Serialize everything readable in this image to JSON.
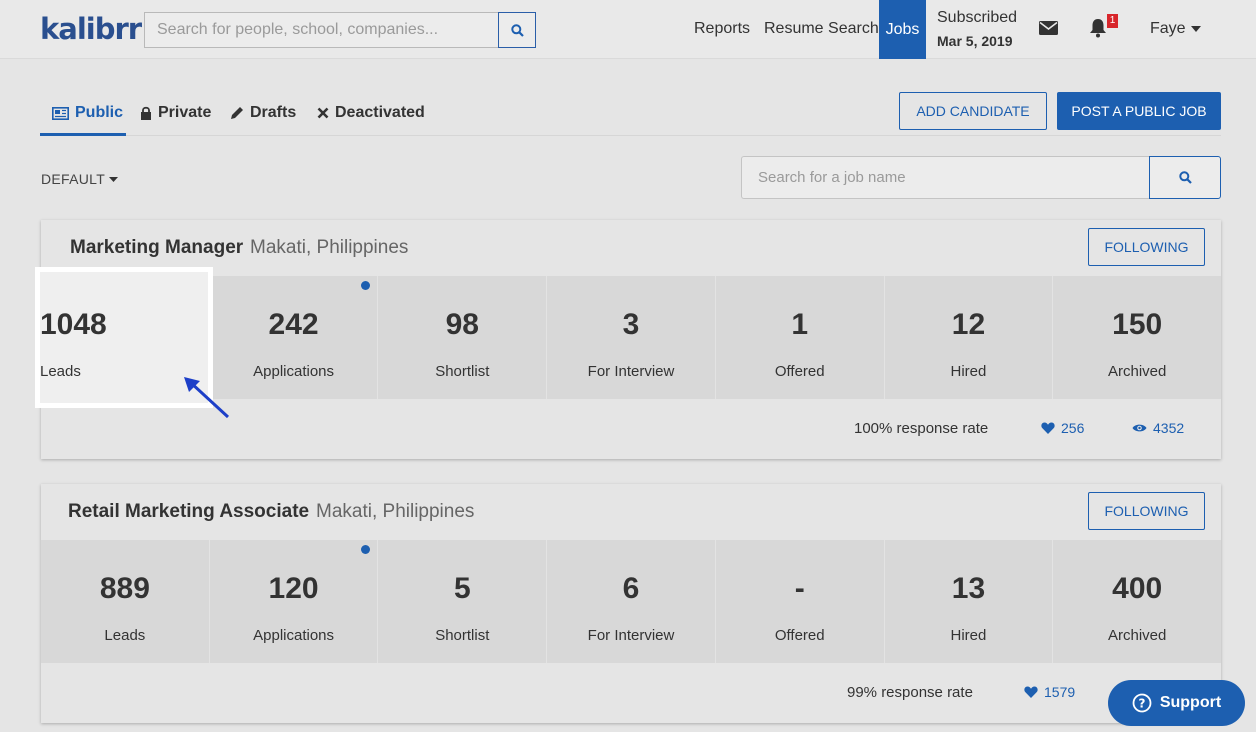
{
  "header": {
    "logo": "kalibrr",
    "search_placeholder": "Search for people, school, companies...",
    "nav": {
      "reports": "Reports",
      "resume_search": "Resume Search",
      "jobs": "Jobs"
    },
    "subscription": {
      "label": "Subscribed",
      "date": "Mar 5, 2019"
    },
    "notification_count": "1",
    "user": "Faye"
  },
  "tabs": {
    "public": "Public",
    "private": "Private",
    "drafts": "Drafts",
    "deactivated": "Deactivated"
  },
  "actions": {
    "add_candidate": "ADD CANDIDATE",
    "post_job": "POST A PUBLIC JOB"
  },
  "sort": {
    "label": "DEFAULT"
  },
  "job_search": {
    "placeholder": "Search for a job name"
  },
  "jobs": [
    {
      "title": "Marketing Manager",
      "location": "Makati, Philippines",
      "follow": "FOLLOWING",
      "stats": [
        {
          "value": "1048",
          "label": "Leads"
        },
        {
          "value": "242",
          "label": "Applications"
        },
        {
          "value": "98",
          "label": "Shortlist"
        },
        {
          "value": "3",
          "label": "For Interview"
        },
        {
          "value": "1",
          "label": "Offered"
        },
        {
          "value": "12",
          "label": "Hired"
        },
        {
          "value": "150",
          "label": "Archived"
        }
      ],
      "response_rate": "100% response rate",
      "likes": "256",
      "views": "4352"
    },
    {
      "title": "Retail Marketing Associate",
      "location": "Makati, Philippines",
      "follow": "FOLLOWING",
      "stats": [
        {
          "value": "889",
          "label": "Leads"
        },
        {
          "value": "120",
          "label": "Applications"
        },
        {
          "value": "5",
          "label": "Shortlist"
        },
        {
          "value": "6",
          "label": "For Interview"
        },
        {
          "value": "-",
          "label": "Offered"
        },
        {
          "value": "13",
          "label": "Hired"
        },
        {
          "value": "400",
          "label": "Archived"
        }
      ],
      "response_rate": "99% response rate",
      "likes": "1579",
      "views": ""
    }
  ],
  "support": {
    "label": "Support"
  },
  "colors": {
    "brand": "#1d5fb0",
    "background": "#e5e5e5",
    "badge": "#d8262b"
  }
}
